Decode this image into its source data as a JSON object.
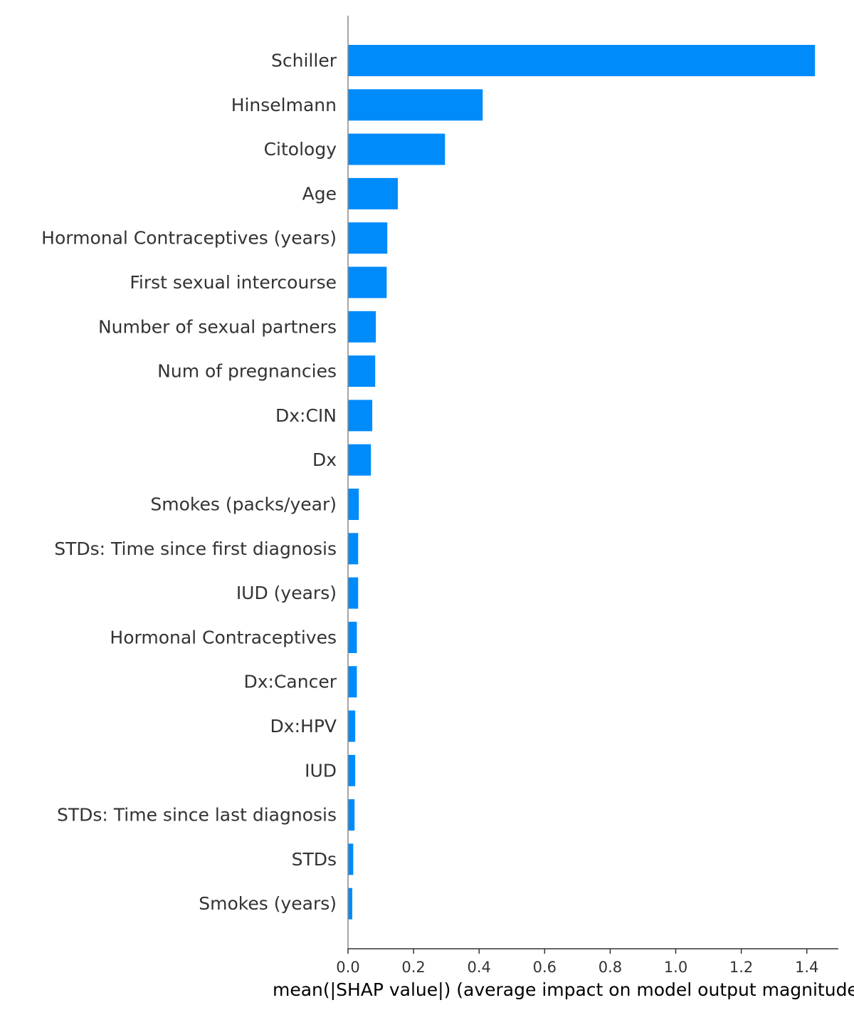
{
  "chart_data": {
    "type": "bar",
    "orientation": "horizontal",
    "categories": [
      "Schiller",
      "Hinselmann",
      "Citology",
      "Age",
      "Hormonal Contraceptives (years)",
      "First sexual intercourse",
      "Number of sexual partners",
      "Num of pregnancies",
      "Dx:CIN",
      "Dx",
      "Smokes (packs/year)",
      "STDs: Time since first diagnosis",
      "IUD (years)",
      "Hormonal Contraceptives",
      "Dx:Cancer",
      "Dx:HPV",
      "IUD",
      "STDs: Time since last diagnosis",
      "STDs",
      "Smokes (years)"
    ],
    "values": [
      1.425,
      0.411,
      0.296,
      0.152,
      0.12,
      0.118,
      0.085,
      0.083,
      0.074,
      0.07,
      0.033,
      0.031,
      0.031,
      0.027,
      0.027,
      0.022,
      0.022,
      0.02,
      0.016,
      0.013
    ],
    "xlabel": "mean(|SHAP value|) (average impact on model output magnitude)",
    "xticks": [
      "0.0",
      "0.2",
      "0.4",
      "0.6",
      "0.8",
      "1.0",
      "1.2",
      "1.4"
    ],
    "xlim": [
      0,
      1.5
    ],
    "bar_color": "#008bfb",
    "grid": false
  }
}
